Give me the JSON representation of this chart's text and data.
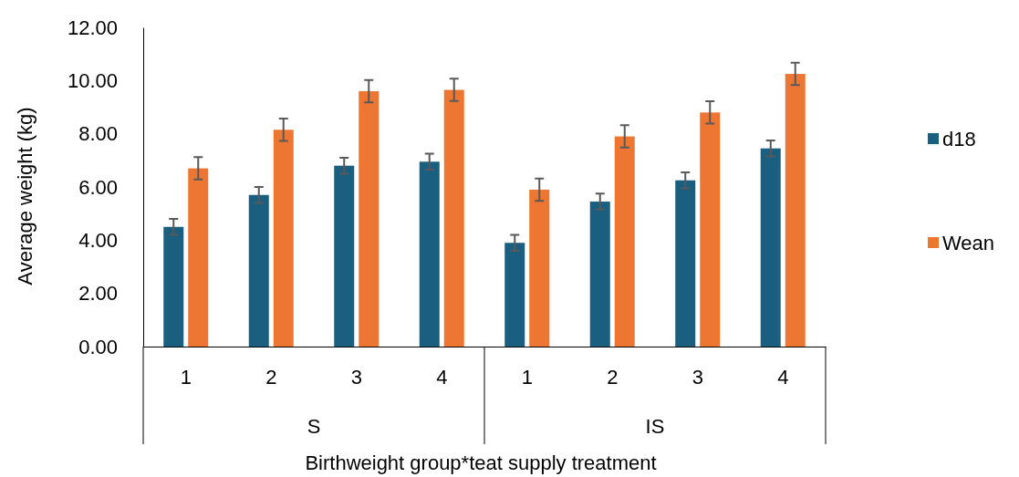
{
  "chart_data": {
    "type": "bar",
    "xlabel": "Birthweight group*teat supply treatment",
    "ylabel": "Average weight (kg)",
    "categories": [
      "1",
      "2",
      "3",
      "4",
      "1",
      "2",
      "3",
      "4"
    ],
    "annotations": [
      "S",
      "IS"
    ],
    "series": [
      {
        "name": "d18",
        "color": "#1a5e80",
        "values": [
          4.5,
          5.7,
          6.8,
          6.95,
          3.9,
          5.45,
          6.25,
          7.45
        ],
        "errors": [
          0.3,
          0.3,
          0.3,
          0.3,
          0.3,
          0.3,
          0.3,
          0.3
        ]
      },
      {
        "name": "Wean",
        "color": "#ec7632",
        "values": [
          6.7,
          8.15,
          9.6,
          9.65,
          5.9,
          7.9,
          8.8,
          10.25
        ],
        "errors": [
          0.42,
          0.42,
          0.42,
          0.42,
          0.42,
          0.42,
          0.42,
          0.42
        ]
      }
    ],
    "ylim": [
      0,
      12
    ],
    "yticks": [
      {
        "value": 0,
        "label": "0.00"
      },
      {
        "value": 2,
        "label": "2.00"
      },
      {
        "value": 4,
        "label": "4.00"
      },
      {
        "value": 6,
        "label": "6.00"
      },
      {
        "value": 8,
        "label": "8.00"
      },
      {
        "value": 10,
        "label": "10.00"
      },
      {
        "value": 12,
        "label": "12.00"
      }
    ],
    "grid": false,
    "legend": "right"
  }
}
